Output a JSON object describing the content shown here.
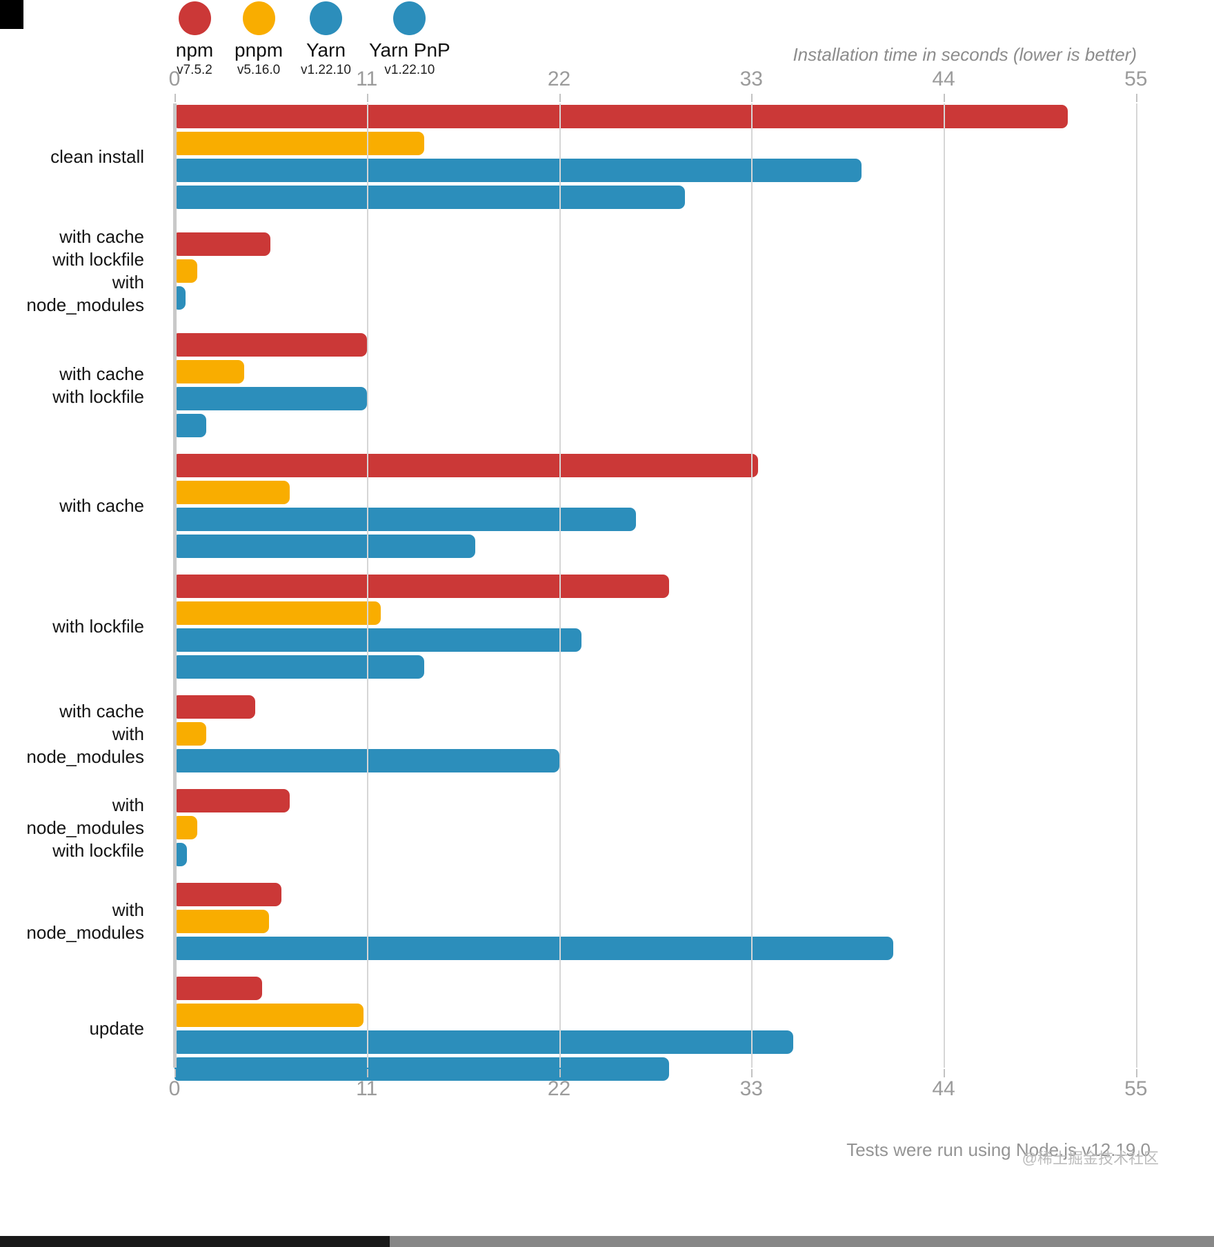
{
  "title": "Installation time in seconds (lower is better)",
  "footer": "Tests were run using Node.js v12.19.0",
  "watermark": "@稀土掘金技术社区",
  "legend": [
    {
      "name": "npm",
      "version": "v7.5.2",
      "color": "#cb3837"
    },
    {
      "name": "pnpm",
      "version": "v5.16.0",
      "color": "#f9ad00"
    },
    {
      "name": "Yarn",
      "version": "v1.22.10",
      "color": "#2c8ebb"
    },
    {
      "name": "Yarn PnP",
      "version": "v1.22.10",
      "color": "#2c8ebb"
    }
  ],
  "chart_data": {
    "type": "bar",
    "orientation": "horizontal",
    "title": "Installation time in seconds (lower is better)",
    "unit": "seconds",
    "x_ticks": [
      0,
      11,
      22,
      33,
      44,
      55
    ],
    "xlim": [
      0,
      57.1
    ],
    "grid": true,
    "legend_position": "top-left",
    "series_colors": {
      "npm": "#cb3837",
      "pnpm": "#f9ad00",
      "Yarn": "#2c8ebb",
      "Yarn PnP": "#2c8ebb"
    },
    "groups": [
      {
        "label_lines": [
          "clean install"
        ],
        "bars": [
          {
            "series": "npm",
            "seconds": 51.1
          },
          {
            "series": "pnpm",
            "seconds": 14.3
          },
          {
            "series": "Yarn",
            "seconds": 39.3
          },
          {
            "series": "Yarn PnP",
            "seconds": 29.2
          }
        ]
      },
      {
        "label_lines": [
          "with cache",
          "with lockfile",
          "with node_modules"
        ],
        "bars": [
          {
            "series": "npm",
            "seconds": 5.5
          },
          {
            "series": "pnpm",
            "seconds": 1.3
          },
          {
            "series": "Yarn",
            "seconds": 0.64
          }
        ]
      },
      {
        "label_lines": [
          "with cache",
          "with lockfile"
        ],
        "bars": [
          {
            "series": "npm",
            "seconds": 11
          },
          {
            "series": "pnpm",
            "seconds": 4
          },
          {
            "series": "Yarn",
            "seconds": 11
          },
          {
            "series": "Yarn PnP",
            "seconds": 1.8
          }
        ]
      },
      {
        "label_lines": [
          "with cache"
        ],
        "bars": [
          {
            "series": "npm",
            "seconds": 33.4
          },
          {
            "series": "pnpm",
            "seconds": 6.6
          },
          {
            "series": "Yarn",
            "seconds": 26.4
          },
          {
            "series": "Yarn PnP",
            "seconds": 17.2
          }
        ]
      },
      {
        "label_lines": [
          "with lockfile"
        ],
        "bars": [
          {
            "series": "npm",
            "seconds": 28.3
          },
          {
            "series": "pnpm",
            "seconds": 11.8
          },
          {
            "series": "Yarn",
            "seconds": 23.3
          },
          {
            "series": "Yarn PnP",
            "seconds": 14.3
          }
        ]
      },
      {
        "label_lines": [
          "with cache",
          "with node_modules"
        ],
        "bars": [
          {
            "series": "npm",
            "seconds": 4.6
          },
          {
            "series": "pnpm",
            "seconds": 1.8
          },
          {
            "series": "Yarn",
            "seconds": 22
          }
        ]
      },
      {
        "label_lines": [
          "with node_modules",
          "with lockfile"
        ],
        "bars": [
          {
            "series": "npm",
            "seconds": 6.6
          },
          {
            "series": "pnpm",
            "seconds": 1.3
          },
          {
            "series": "Yarn",
            "seconds": 0.71
          }
        ]
      },
      {
        "label_lines": [
          "with node_modules"
        ],
        "bars": [
          {
            "series": "npm",
            "seconds": 6.1
          },
          {
            "series": "pnpm",
            "seconds": 5.4
          },
          {
            "series": "Yarn",
            "seconds": 41.1
          }
        ]
      },
      {
        "label_lines": [
          "update"
        ],
        "bars": [
          {
            "series": "npm",
            "seconds": 5
          },
          {
            "series": "pnpm",
            "seconds": 10.8
          },
          {
            "series": "Yarn",
            "seconds": 35.4
          },
          {
            "series": "Yarn PnP",
            "seconds": 28.3
          }
        ]
      }
    ]
  }
}
